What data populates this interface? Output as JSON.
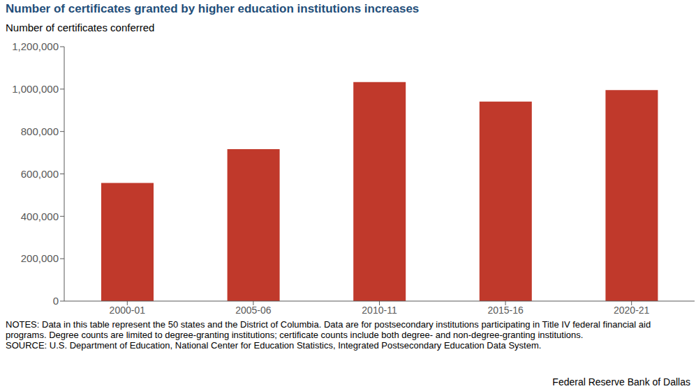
{
  "chart_data": {
    "type": "bar",
    "title": "Number of certificates granted by higher education institutions increases",
    "subtitle": "Number of certificates conferred",
    "categories": [
      "2000-01",
      "2005-06",
      "2010-11",
      "2015-16",
      "2020-21"
    ],
    "values": [
      557000,
      717000,
      1033000,
      941000,
      995000
    ],
    "color": "#c0392b",
    "ylim": [
      0,
      1200000
    ],
    "yticks": [
      0,
      {
        "value": 200000,
        "label": "200,000"
      },
      {
        "value": 400000,
        "label": "400,000"
      },
      {
        "value": 600000,
        "label": "600,000"
      },
      {
        "value": 800000,
        "label": "800,000"
      },
      {
        "value": 1000000,
        "label": "1,000,000"
      },
      {
        "value": 1200000,
        "label": "1,200,000"
      }
    ],
    "grid": false,
    "notes": "NOTES: Data in this table represent the 50 states and the District of Columbia. Data are for postsecondary institutions participating in Title IV federal financial aid programs. Degree counts are limited to degree-granting institutions; certificate counts include both degree- and non-degree-granting institutions.",
    "source": "SOURCE: U.S. Department of Education, National Center for Education Statistics, Integrated Postsecondary Education Data System.",
    "credit": "Federal Reserve Bank of Dallas"
  }
}
